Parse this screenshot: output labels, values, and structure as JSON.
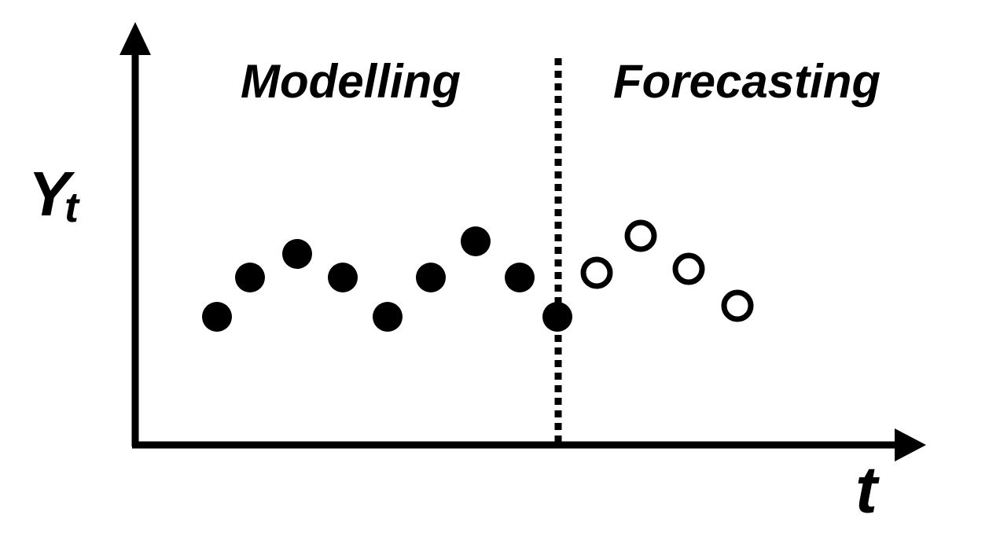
{
  "diagram": {
    "regions": {
      "left_label": "Modelling",
      "right_label": "Forecasting"
    },
    "axes": {
      "y_label": "Y",
      "y_subscript": "t",
      "x_label": "t"
    },
    "colors": {
      "ink": "#000000",
      "background": "#ffffff"
    }
  }
}
